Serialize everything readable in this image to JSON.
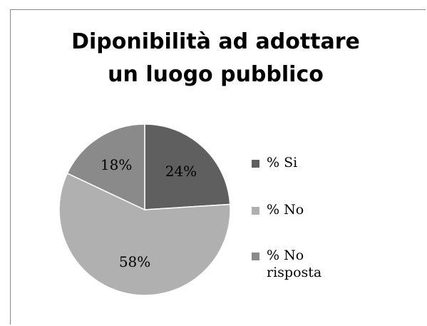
{
  "chart_data": {
    "type": "pie",
    "title_lines": [
      "Diponibilità ad adottare",
      "un luogo pubblico"
    ],
    "categories": [
      "% Si",
      "% No",
      "% No risposta"
    ],
    "values": [
      24,
      58,
      18
    ],
    "data_labels": [
      "24%",
      "58%",
      "18%"
    ],
    "colors": [
      "#5f5f5f",
      "#b0b0b0",
      "#8a8a8a"
    ],
    "legend_position": "right"
  }
}
